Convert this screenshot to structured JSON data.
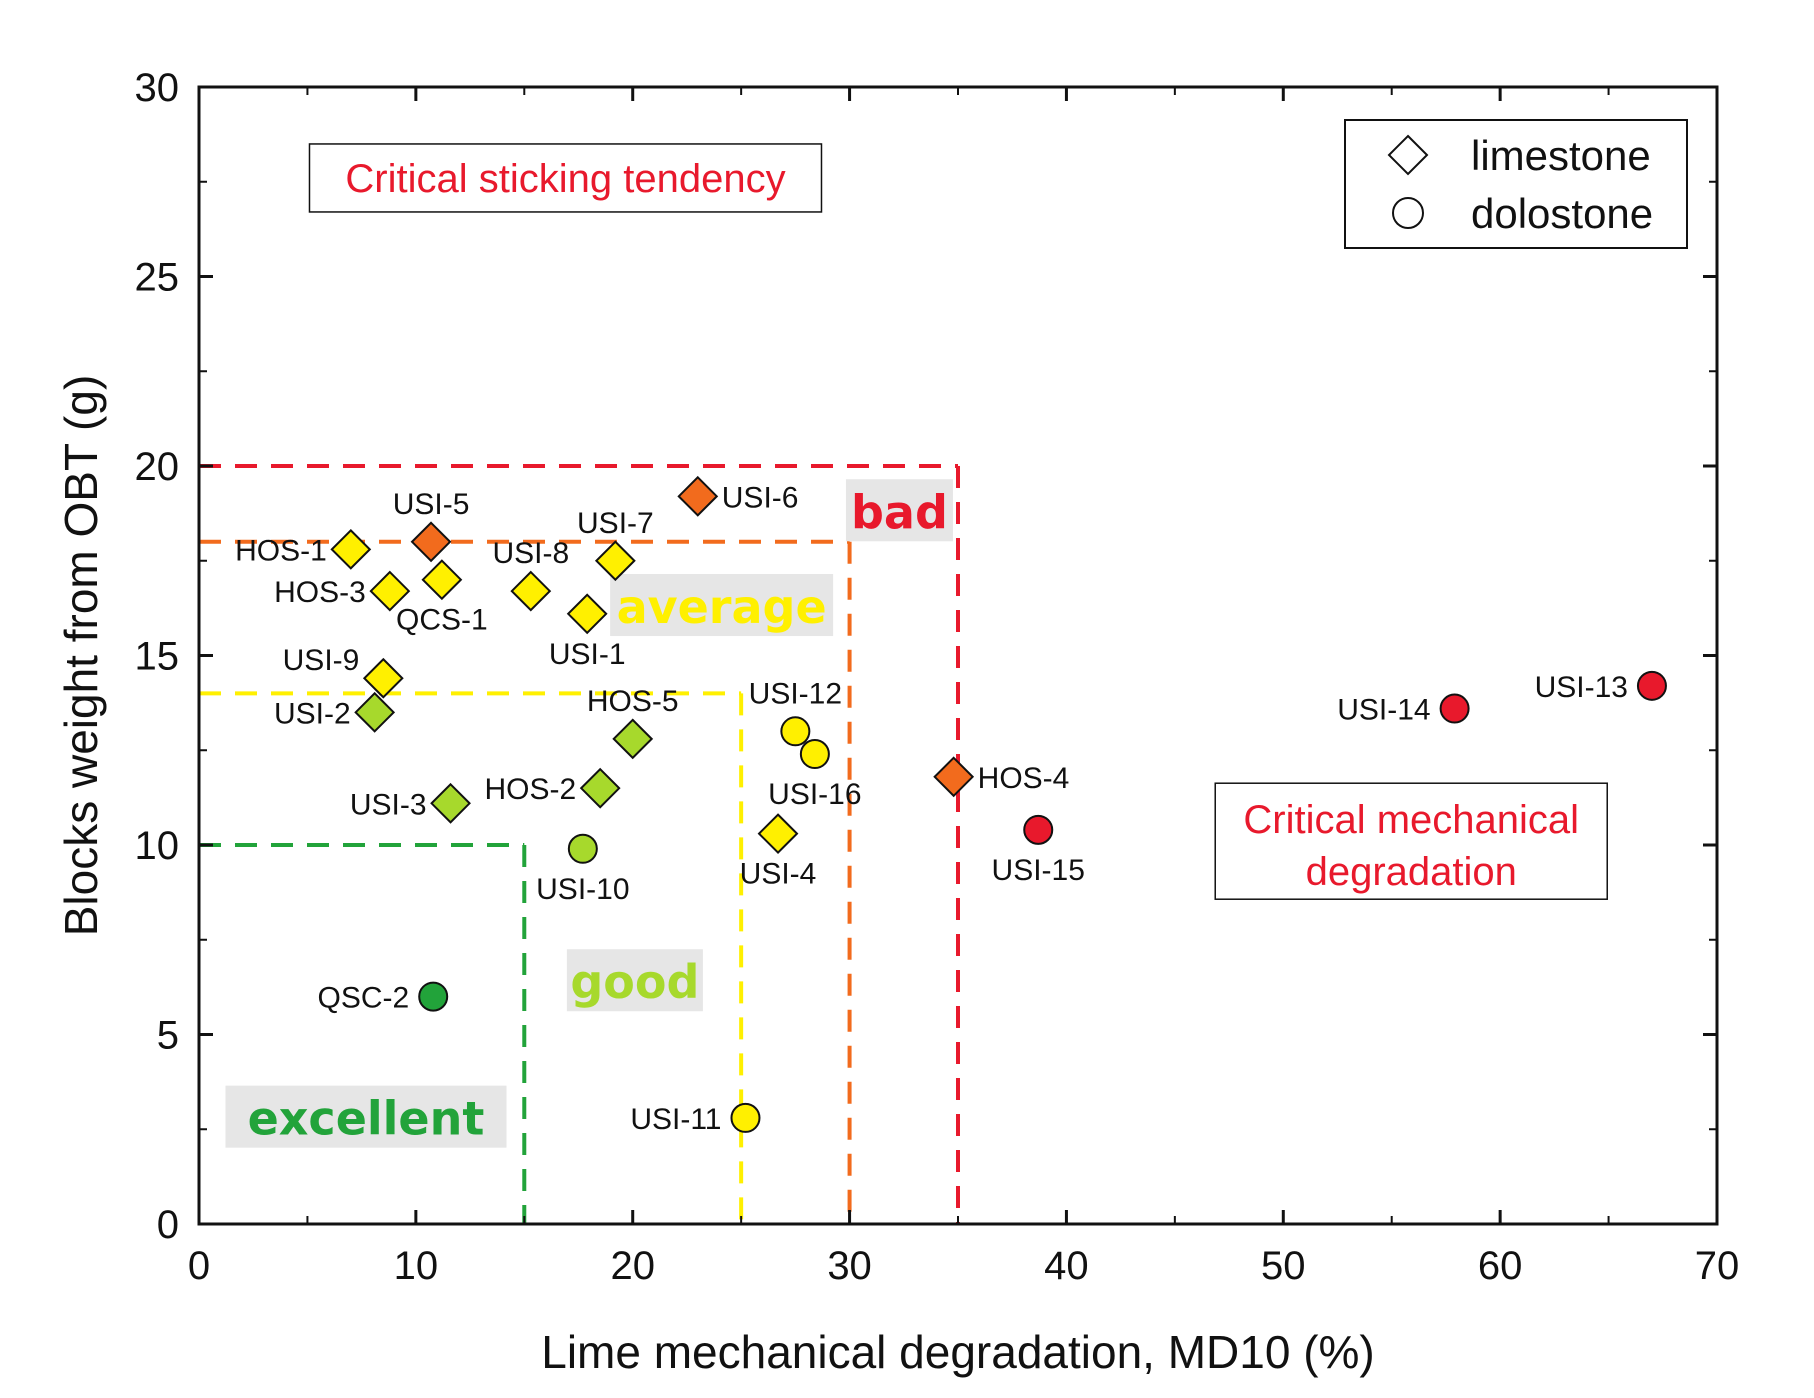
{
  "chart_data": {
    "type": "scatter",
    "xlabel": "Lime mechanical degradation, MD10 (%)",
    "ylabel": "Blocks weight from OBT (g)",
    "xlim": [
      0,
      70
    ],
    "ylim": [
      0,
      30
    ],
    "xticks": [
      0,
      10,
      20,
      30,
      40,
      50,
      60,
      70
    ],
    "yticks": [
      0,
      5,
      10,
      15,
      20,
      25,
      30
    ],
    "legend": {
      "placement": "top-right",
      "entries": [
        {
          "marker": "diamond",
          "label": "limestone"
        },
        {
          "marker": "circle",
          "label": "dolostone"
        }
      ]
    },
    "colors": {
      "excellent": "#22a33a",
      "good": "#a7d92c",
      "average": "#fff000",
      "bad": "#f26b1d",
      "critical": "#e8192c"
    },
    "points": [
      {
        "label": "HOS-1",
        "x": 7.0,
        "y": 17.8,
        "marker": "diamond",
        "class": "average",
        "label_pos": "left"
      },
      {
        "label": "USI-5",
        "x": 10.7,
        "y": 18.0,
        "marker": "diamond",
        "class": "bad",
        "label_pos": "above"
      },
      {
        "label": "HOS-3",
        "x": 8.8,
        "y": 16.7,
        "marker": "diamond",
        "class": "average",
        "label_pos": "left"
      },
      {
        "label": "QCS-1",
        "x": 11.2,
        "y": 17.0,
        "marker": "diamond",
        "class": "average",
        "label_pos": "below"
      },
      {
        "label": "USI-8",
        "x": 15.3,
        "y": 16.7,
        "marker": "diamond",
        "class": "average",
        "label_pos": "above"
      },
      {
        "label": "USI-7",
        "x": 19.2,
        "y": 17.5,
        "marker": "diamond",
        "class": "average",
        "label_pos": "above"
      },
      {
        "label": "USI-1",
        "x": 17.9,
        "y": 16.1,
        "marker": "diamond",
        "class": "average",
        "label_pos": "below"
      },
      {
        "label": "USI-6",
        "x": 23.0,
        "y": 19.2,
        "marker": "diamond",
        "class": "bad",
        "label_pos": "right"
      },
      {
        "label": "USI-9",
        "x": 8.5,
        "y": 14.4,
        "marker": "diamond",
        "class": "average",
        "label_pos": "left-above"
      },
      {
        "label": "USI-2",
        "x": 8.1,
        "y": 13.5,
        "marker": "diamond",
        "class": "good",
        "label_pos": "left"
      },
      {
        "label": "HOS-5",
        "x": 20.0,
        "y": 12.8,
        "marker": "diamond",
        "class": "good",
        "label_pos": "above"
      },
      {
        "label": "HOS-2",
        "x": 18.5,
        "y": 11.5,
        "marker": "diamond",
        "class": "good",
        "label_pos": "left"
      },
      {
        "label": "USI-3",
        "x": 11.6,
        "y": 11.1,
        "marker": "diamond",
        "class": "good",
        "label_pos": "left"
      },
      {
        "label": "USI-10",
        "x": 17.7,
        "y": 9.9,
        "marker": "circle",
        "class": "good",
        "label_pos": "below"
      },
      {
        "label": "USI-12",
        "x": 27.5,
        "y": 13.0,
        "marker": "circle",
        "class": "average",
        "label_pos": "above"
      },
      {
        "label": "USI-16",
        "x": 28.4,
        "y": 12.4,
        "marker": "circle",
        "class": "average",
        "label_pos": "below"
      },
      {
        "label": "USI-4",
        "x": 26.7,
        "y": 10.3,
        "marker": "diamond",
        "class": "average",
        "label_pos": "below"
      },
      {
        "label": "HOS-4",
        "x": 34.8,
        "y": 11.8,
        "marker": "diamond",
        "class": "bad",
        "label_pos": "right"
      },
      {
        "label": "USI-15",
        "x": 38.7,
        "y": 10.4,
        "marker": "circle",
        "class": "critical",
        "label_pos": "below"
      },
      {
        "label": "USI-14",
        "x": 57.9,
        "y": 13.6,
        "marker": "circle",
        "class": "critical",
        "label_pos": "left"
      },
      {
        "label": "USI-13",
        "x": 67.0,
        "y": 14.2,
        "marker": "circle",
        "class": "critical",
        "label_pos": "left"
      },
      {
        "label": "QSC-2",
        "x": 10.8,
        "y": 6.0,
        "marker": "circle",
        "class": "excellent",
        "label_pos": "left"
      },
      {
        "label": "USI-11",
        "x": 25.2,
        "y": 2.8,
        "marker": "circle",
        "class": "average",
        "label_pos": "left"
      }
    ],
    "boundaries": [
      {
        "class": "critical",
        "x_max": 35,
        "y_max": 20
      },
      {
        "class": "bad",
        "x_max": 30,
        "y_max": 18
      },
      {
        "class": "average",
        "x_max": 25,
        "y_max": 14
      },
      {
        "class": "excellent",
        "x_max": 15,
        "y_max": 10
      }
    ],
    "zone_labels": [
      {
        "text": "bad",
        "class": "critical",
        "x": 32.3,
        "y": 18.7
      },
      {
        "text": "average",
        "class": "average",
        "x": 24.1,
        "y": 16.2
      },
      {
        "text": "good",
        "class": "good",
        "x": 20.1,
        "y": 6.3
      },
      {
        "text": "excellent",
        "class": "excellent",
        "x": 7.7,
        "y": 2.7
      }
    ],
    "annotations": [
      {
        "text": "Critical sticking tendency",
        "x": 16.9,
        "y": 27.6
      },
      {
        "text": "Critical mechanical degradation",
        "x": 55.9,
        "y": 10.1
      }
    ]
  }
}
